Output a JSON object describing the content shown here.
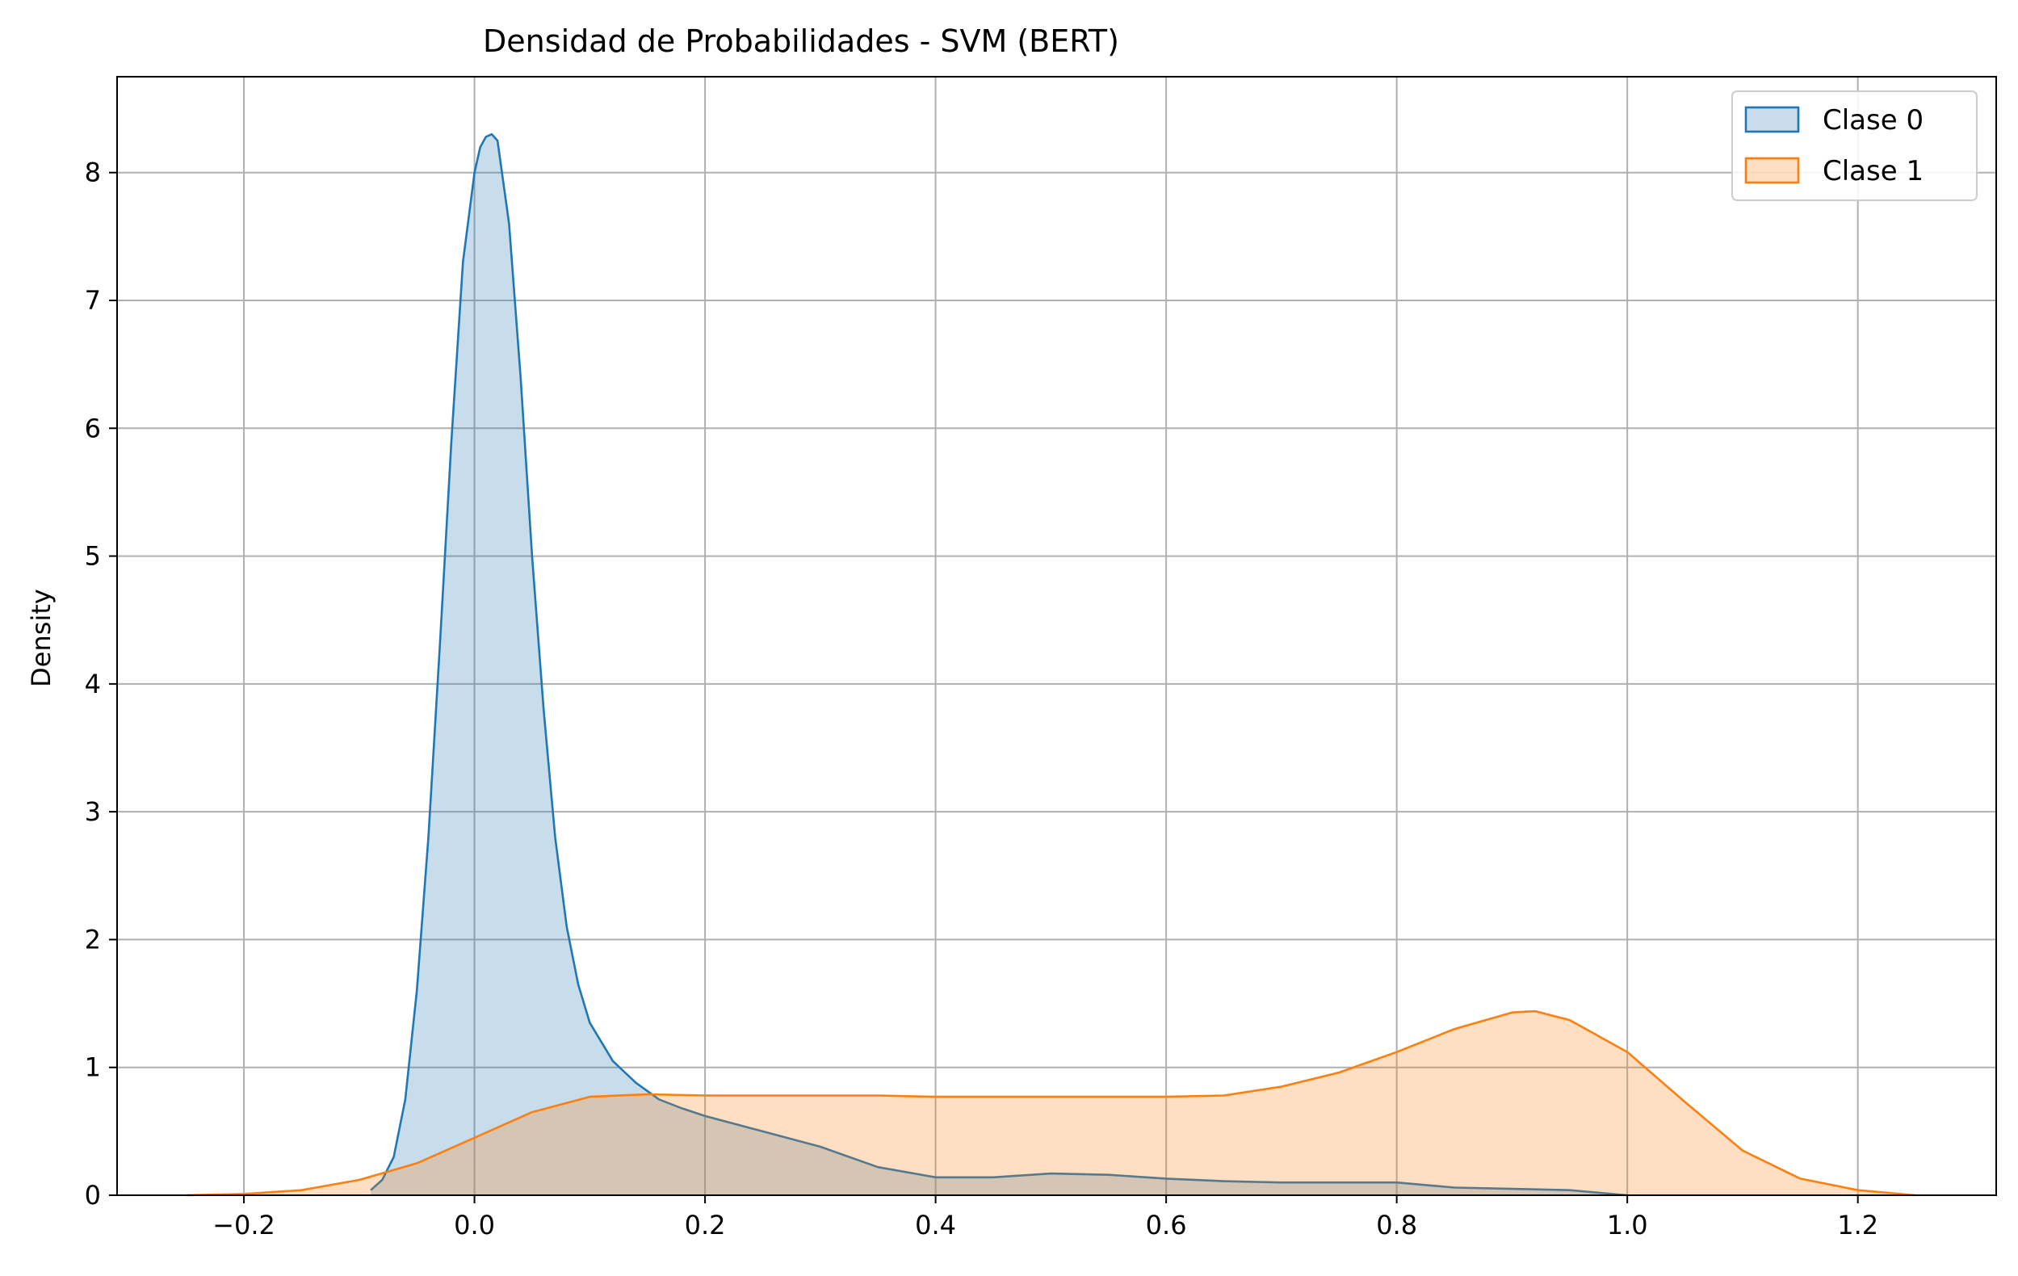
{
  "chart_data": {
    "type": "area",
    "title": "Densidad de Probabilidades - SVM (BERT)",
    "xlabel": "",
    "ylabel": "Density",
    "xlim": [
      -0.31,
      1.32
    ],
    "ylim": [
      0,
      8.75
    ],
    "xticks": [
      -0.2,
      0.0,
      0.2,
      0.4,
      0.6,
      0.8,
      1.0,
      1.2
    ],
    "xtick_labels": [
      "−0.2",
      "0.0",
      "0.2",
      "0.4",
      "0.6",
      "0.8",
      "1.0",
      "1.2"
    ],
    "yticks": [
      0,
      1,
      2,
      3,
      4,
      5,
      6,
      7,
      8
    ],
    "ytick_labels": [
      "0",
      "1",
      "2",
      "3",
      "4",
      "5",
      "6",
      "7",
      "8"
    ],
    "grid": true,
    "legend_position": "top-right",
    "series": [
      {
        "name": "Clase 0",
        "line_color": "#1f77b4",
        "fill_color": "#c6dbec",
        "x": [
          -0.09,
          -0.08,
          -0.07,
          -0.06,
          -0.05,
          -0.04,
          -0.03,
          -0.02,
          -0.01,
          0.0,
          0.005,
          0.01,
          0.015,
          0.02,
          0.03,
          0.04,
          0.05,
          0.06,
          0.07,
          0.08,
          0.09,
          0.1,
          0.12,
          0.14,
          0.16,
          0.18,
          0.2,
          0.25,
          0.3,
          0.35,
          0.4,
          0.45,
          0.5,
          0.55,
          0.6,
          0.65,
          0.7,
          0.75,
          0.8,
          0.85,
          0.9,
          0.95,
          1.0
        ],
        "y": [
          0.04,
          0.12,
          0.3,
          0.75,
          1.6,
          2.8,
          4.3,
          5.9,
          7.3,
          8.0,
          8.2,
          8.28,
          8.3,
          8.25,
          7.6,
          6.4,
          5.0,
          3.8,
          2.8,
          2.1,
          1.65,
          1.35,
          1.05,
          0.88,
          0.75,
          0.68,
          0.62,
          0.5,
          0.38,
          0.22,
          0.14,
          0.14,
          0.17,
          0.16,
          0.13,
          0.11,
          0.1,
          0.1,
          0.1,
          0.06,
          0.05,
          0.04,
          0.0
        ]
      },
      {
        "name": "Clase 1",
        "line_color": "#ff7f0e",
        "fill_color": "#ffdbb8",
        "x": [
          -0.25,
          -0.2,
          -0.15,
          -0.1,
          -0.05,
          0.0,
          0.05,
          0.1,
          0.15,
          0.2,
          0.25,
          0.3,
          0.35,
          0.4,
          0.45,
          0.5,
          0.55,
          0.6,
          0.65,
          0.7,
          0.75,
          0.8,
          0.85,
          0.9,
          0.92,
          0.95,
          1.0,
          1.05,
          1.1,
          1.15,
          1.2,
          1.25
        ],
        "y": [
          0.0,
          0.01,
          0.04,
          0.12,
          0.25,
          0.45,
          0.65,
          0.77,
          0.79,
          0.78,
          0.78,
          0.78,
          0.78,
          0.77,
          0.77,
          0.77,
          0.77,
          0.77,
          0.78,
          0.85,
          0.96,
          1.12,
          1.3,
          1.43,
          1.44,
          1.37,
          1.12,
          0.73,
          0.35,
          0.13,
          0.04,
          0.0
        ]
      }
    ]
  }
}
